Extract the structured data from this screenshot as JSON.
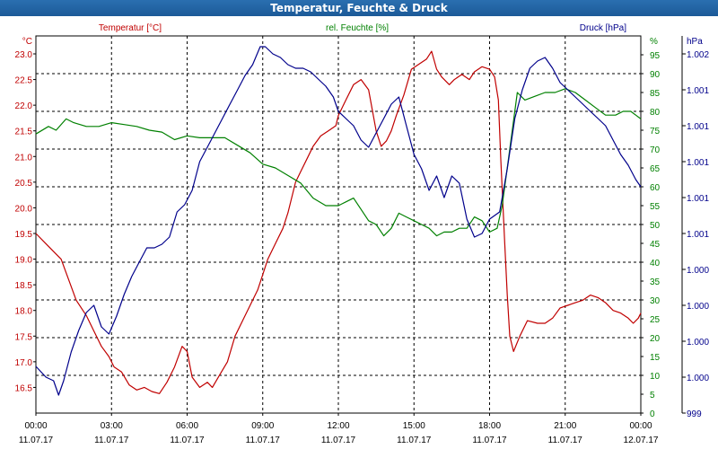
{
  "window": {
    "title": "Temperatur, Feuchte & Druck"
  },
  "chart_data": {
    "type": "line",
    "title": "Temperatur, Feuchte & Druck",
    "x": {
      "ticks": [
        "00:00",
        "03:00",
        "06:00",
        "09:00",
        "12:00",
        "15:00",
        "18:00",
        "21:00",
        "00:00"
      ],
      "dates": [
        "11.07.17",
        "11.07.17",
        "11.07.17",
        "11.07.17",
        "11.07.17",
        "11.07.17",
        "11.07.17",
        "11.07.17",
        "12.07.17"
      ],
      "range_hours": [
        0,
        24
      ]
    },
    "axes": {
      "temperature": {
        "unit": "°C",
        "ticks": [
          "16.5",
          "17.0",
          "17.5",
          "18.0",
          "18.5",
          "19.0",
          "19.5",
          "20.0",
          "20.5",
          "21.0",
          "21.5",
          "22.0",
          "22.5",
          "23.0"
        ],
        "range": [
          16.0,
          23.35
        ],
        "color": "#c00000"
      },
      "humidity": {
        "unit": "%",
        "ticks": [
          "0",
          "5",
          "10",
          "15",
          "20",
          "25",
          "30",
          "35",
          "40",
          "45",
          "50",
          "55",
          "60",
          "65",
          "70",
          "75",
          "80",
          "85",
          "90",
          "95"
        ],
        "range": [
          0,
          100
        ],
        "color": "#008000"
      },
      "pressure": {
        "unit": "hPa",
        "ticks": [
          "999",
          "1.000",
          "1.000",
          "1.000",
          "1.000",
          "1.001",
          "1.001",
          "1.001",
          "1.001",
          "1.001",
          "1.002"
        ],
        "range": [
          0,
          10.5
        ],
        "color": "#00008b"
      }
    },
    "series": [
      {
        "name": "Temperatur [°C]",
        "axis": "temperature",
        "color": "#c00000",
        "points": [
          [
            0,
            19.5
          ],
          [
            0.4,
            19.3
          ],
          [
            0.8,
            19.1
          ],
          [
            1.0,
            19.0
          ],
          [
            1.3,
            18.6
          ],
          [
            1.6,
            18.2
          ],
          [
            2.0,
            17.9
          ],
          [
            2.3,
            17.6
          ],
          [
            2.6,
            17.3
          ],
          [
            2.9,
            17.1
          ],
          [
            3.1,
            16.9
          ],
          [
            3.4,
            16.8
          ],
          [
            3.7,
            16.55
          ],
          [
            4.0,
            16.45
          ],
          [
            4.3,
            16.5
          ],
          [
            4.6,
            16.42
          ],
          [
            4.9,
            16.38
          ],
          [
            5.2,
            16.6
          ],
          [
            5.5,
            16.9
          ],
          [
            5.8,
            17.3
          ],
          [
            6.0,
            17.2
          ],
          [
            6.2,
            16.7
          ],
          [
            6.5,
            16.5
          ],
          [
            6.8,
            16.6
          ],
          [
            7.0,
            16.5
          ],
          [
            7.3,
            16.75
          ],
          [
            7.6,
            17.0
          ],
          [
            7.9,
            17.5
          ],
          [
            8.2,
            17.8
          ],
          [
            8.5,
            18.1
          ],
          [
            8.8,
            18.4
          ],
          [
            9.0,
            18.7
          ],
          [
            9.2,
            19.0
          ],
          [
            9.5,
            19.3
          ],
          [
            9.8,
            19.6
          ],
          [
            10.0,
            19.9
          ],
          [
            10.3,
            20.5
          ],
          [
            10.5,
            20.7
          ],
          [
            10.8,
            21.0
          ],
          [
            11.0,
            21.2
          ],
          [
            11.3,
            21.4
          ],
          [
            11.6,
            21.5
          ],
          [
            11.9,
            21.6
          ],
          [
            12.0,
            21.8
          ],
          [
            12.3,
            22.1
          ],
          [
            12.6,
            22.4
          ],
          [
            12.9,
            22.5
          ],
          [
            13.2,
            22.3
          ],
          [
            13.5,
            21.5
          ],
          [
            13.7,
            21.2
          ],
          [
            13.9,
            21.3
          ],
          [
            14.1,
            21.5
          ],
          [
            14.3,
            21.8
          ],
          [
            14.6,
            22.2
          ],
          [
            14.9,
            22.7
          ],
          [
            15.2,
            22.8
          ],
          [
            15.5,
            22.9
          ],
          [
            15.7,
            23.05
          ],
          [
            15.9,
            22.7
          ],
          [
            16.1,
            22.55
          ],
          [
            16.4,
            22.4
          ],
          [
            16.6,
            22.5
          ],
          [
            16.9,
            22.6
          ],
          [
            17.2,
            22.5
          ],
          [
            17.4,
            22.65
          ],
          [
            17.7,
            22.75
          ],
          [
            18.0,
            22.7
          ],
          [
            18.2,
            22.55
          ],
          [
            18.35,
            22.1
          ],
          [
            18.45,
            20.9
          ],
          [
            18.6,
            19.3
          ],
          [
            18.7,
            18.3
          ],
          [
            18.8,
            17.5
          ],
          [
            18.95,
            17.2
          ],
          [
            19.2,
            17.5
          ],
          [
            19.5,
            17.8
          ],
          [
            19.9,
            17.75
          ],
          [
            20.2,
            17.75
          ],
          [
            20.5,
            17.85
          ],
          [
            20.8,
            18.05
          ],
          [
            21.1,
            18.1
          ],
          [
            21.4,
            18.15
          ],
          [
            21.7,
            18.2
          ],
          [
            22.0,
            18.3
          ],
          [
            22.3,
            18.25
          ],
          [
            22.6,
            18.15
          ],
          [
            22.9,
            18.0
          ],
          [
            23.2,
            17.95
          ],
          [
            23.5,
            17.85
          ],
          [
            23.7,
            17.75
          ],
          [
            23.9,
            17.85
          ],
          [
            24.0,
            17.95
          ]
        ]
      },
      {
        "name": "rel. Feuchte [%]",
        "axis": "humidity",
        "color": "#008000",
        "points": [
          [
            0,
            74
          ],
          [
            0.5,
            76
          ],
          [
            0.8,
            75
          ],
          [
            1.2,
            78
          ],
          [
            1.5,
            77
          ],
          [
            2.0,
            76
          ],
          [
            2.5,
            76
          ],
          [
            3.0,
            77
          ],
          [
            3.5,
            76.5
          ],
          [
            4.0,
            76
          ],
          [
            4.5,
            75
          ],
          [
            5.0,
            74.5
          ],
          [
            5.5,
            72.5
          ],
          [
            6.0,
            73.5
          ],
          [
            6.5,
            73
          ],
          [
            7.0,
            73
          ],
          [
            7.5,
            73
          ],
          [
            8.0,
            71
          ],
          [
            8.5,
            69
          ],
          [
            9.0,
            66
          ],
          [
            9.5,
            65
          ],
          [
            10.0,
            63
          ],
          [
            10.5,
            61
          ],
          [
            11.0,
            57
          ],
          [
            11.5,
            55
          ],
          [
            12.0,
            55
          ],
          [
            12.3,
            56
          ],
          [
            12.6,
            57
          ],
          [
            12.9,
            54
          ],
          [
            13.2,
            51
          ],
          [
            13.5,
            50
          ],
          [
            13.8,
            47
          ],
          [
            14.1,
            49
          ],
          [
            14.4,
            53
          ],
          [
            14.7,
            52
          ],
          [
            15.0,
            51
          ],
          [
            15.3,
            50
          ],
          [
            15.6,
            49
          ],
          [
            15.9,
            47
          ],
          [
            16.2,
            48
          ],
          [
            16.5,
            48
          ],
          [
            16.8,
            49
          ],
          [
            17.1,
            49
          ],
          [
            17.4,
            52
          ],
          [
            17.7,
            51
          ],
          [
            18.0,
            48
          ],
          [
            18.3,
            49
          ],
          [
            18.5,
            55
          ],
          [
            18.7,
            65
          ],
          [
            18.9,
            75
          ],
          [
            19.1,
            85
          ],
          [
            19.4,
            83
          ],
          [
            19.8,
            84
          ],
          [
            20.2,
            85
          ],
          [
            20.6,
            85
          ],
          [
            21.0,
            86
          ],
          [
            21.4,
            85
          ],
          [
            21.8,
            83
          ],
          [
            22.2,
            81
          ],
          [
            22.6,
            79
          ],
          [
            23.0,
            79
          ],
          [
            23.3,
            80
          ],
          [
            23.6,
            80
          ],
          [
            23.8,
            79
          ],
          [
            24.0,
            78
          ]
        ]
      },
      {
        "name": "Druck [hPa]",
        "axis": "pressure",
        "color": "#00008b",
        "points": [
          [
            0,
            1.3
          ],
          [
            0.4,
            1.0
          ],
          [
            0.7,
            0.9
          ],
          [
            0.9,
            0.5
          ],
          [
            1.1,
            0.9
          ],
          [
            1.4,
            1.7
          ],
          [
            1.7,
            2.3
          ],
          [
            2.0,
            2.8
          ],
          [
            2.3,
            3.0
          ],
          [
            2.6,
            2.4
          ],
          [
            2.9,
            2.2
          ],
          [
            3.2,
            2.7
          ],
          [
            3.5,
            3.3
          ],
          [
            3.8,
            3.8
          ],
          [
            4.1,
            4.2
          ],
          [
            4.4,
            4.6
          ],
          [
            4.7,
            4.6
          ],
          [
            5.0,
            4.7
          ],
          [
            5.3,
            4.9
          ],
          [
            5.6,
            5.6
          ],
          [
            5.9,
            5.8
          ],
          [
            6.2,
            6.2
          ],
          [
            6.5,
            7.0
          ],
          [
            6.8,
            7.4
          ],
          [
            7.1,
            7.8
          ],
          [
            7.4,
            8.2
          ],
          [
            7.7,
            8.6
          ],
          [
            8.0,
            9.0
          ],
          [
            8.3,
            9.4
          ],
          [
            8.6,
            9.7
          ],
          [
            8.9,
            10.2
          ],
          [
            9.1,
            10.2
          ],
          [
            9.4,
            10.0
          ],
          [
            9.7,
            9.9
          ],
          [
            10.0,
            9.7
          ],
          [
            10.3,
            9.6
          ],
          [
            10.6,
            9.6
          ],
          [
            10.9,
            9.5
          ],
          [
            11.2,
            9.3
          ],
          [
            11.5,
            9.1
          ],
          [
            11.8,
            8.8
          ],
          [
            12.0,
            8.4
          ],
          [
            12.3,
            8.2
          ],
          [
            12.6,
            8.0
          ],
          [
            12.9,
            7.6
          ],
          [
            13.2,
            7.4
          ],
          [
            13.5,
            7.8
          ],
          [
            13.8,
            8.2
          ],
          [
            14.1,
            8.6
          ],
          [
            14.4,
            8.8
          ],
          [
            14.7,
            8.0
          ],
          [
            15.0,
            7.2
          ],
          [
            15.3,
            6.8
          ],
          [
            15.6,
            6.2
          ],
          [
            15.9,
            6.6
          ],
          [
            16.2,
            6.0
          ],
          [
            16.5,
            6.6
          ],
          [
            16.8,
            6.4
          ],
          [
            17.1,
            5.4
          ],
          [
            17.4,
            4.9
          ],
          [
            17.7,
            5.0
          ],
          [
            18.0,
            5.4
          ],
          [
            18.4,
            5.6
          ],
          [
            18.7,
            6.8
          ],
          [
            19.0,
            8.2
          ],
          [
            19.3,
            9.0
          ],
          [
            19.6,
            9.6
          ],
          [
            19.9,
            9.8
          ],
          [
            20.2,
            9.9
          ],
          [
            20.5,
            9.6
          ],
          [
            20.8,
            9.2
          ],
          [
            21.1,
            9.0
          ],
          [
            21.4,
            8.8
          ],
          [
            21.7,
            8.6
          ],
          [
            22.0,
            8.4
          ],
          [
            22.3,
            8.2
          ],
          [
            22.6,
            8.0
          ],
          [
            22.9,
            7.6
          ],
          [
            23.2,
            7.2
          ],
          [
            23.5,
            6.9
          ],
          [
            23.8,
            6.5
          ],
          [
            24.0,
            6.3
          ]
        ]
      }
    ]
  }
}
